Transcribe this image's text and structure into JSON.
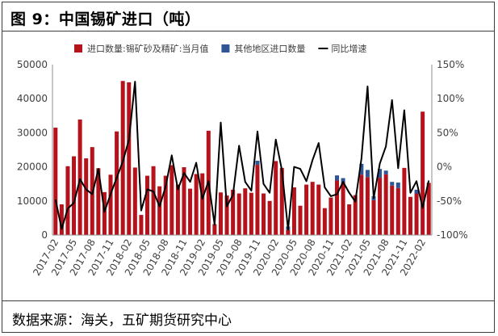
{
  "title": "图 9：中国锡矿进口（吨）",
  "source": "数据来源：海关，五矿期货研究中心",
  "chart_data": {
    "type": "bar",
    "series": [
      {
        "name": "进口数量:锡矿砂及精矿:当月值",
        "kind": "bar",
        "color": "#b5121b",
        "values": [
          31500,
          9000,
          20200,
          23100,
          33900,
          22500,
          25800,
          19600,
          12600,
          17700,
          30400,
          45200,
          44800,
          19800,
          5900,
          17400,
          20200,
          14300,
          17400,
          20500,
          14800,
          19900,
          13600,
          17900,
          18100,
          30600,
          3200,
          12500,
          11600,
          13300,
          12200,
          13700,
          12400,
          20600,
          12200,
          10000,
          21700,
          19700,
          1500,
          14000,
          8600,
          14800,
          15600,
          14800,
          7900,
          11000,
          16000,
          15500,
          9000,
          11700,
          17700,
          17000,
          10200,
          16800,
          17800,
          14500,
          13800,
          19700,
          11200,
          12200,
          36200,
          15300
        ]
      },
      {
        "name": "其他地区进口数量",
        "kind": "bar_stack",
        "color": "#2f5597",
        "values": [
          0,
          0,
          0,
          0,
          0,
          0,
          0,
          0,
          0,
          0,
          0,
          0,
          0,
          0,
          0,
          0,
          0,
          0,
          0,
          0,
          0,
          0,
          0,
          0,
          0,
          0,
          0,
          0,
          0,
          0,
          0,
          0,
          0,
          1200,
          0,
          0,
          0,
          0,
          1000,
          0,
          0,
          0,
          0,
          0,
          0,
          0,
          1500,
          1200,
          0,
          0,
          3200,
          2100,
          1200,
          2600,
          1100,
          1100,
          1600,
          0,
          0,
          1100,
          0,
          0
        ]
      },
      {
        "name": "同比增速",
        "kind": "line",
        "axis": "right",
        "color": "#000000",
        "values": [
          -48,
          -91,
          -61,
          -53,
          -18,
          -33,
          -40,
          -3,
          -66,
          -40,
          -16,
          8,
          40,
          125,
          -64,
          -33,
          -36,
          -58,
          -29,
          17,
          -33,
          -9,
          -22,
          6,
          -47,
          -21,
          -85,
          65,
          -58,
          -41,
          31,
          -22,
          -35,
          52,
          -25,
          -38,
          40,
          -5,
          -92,
          0,
          -3,
          -21,
          10,
          35,
          -30,
          -43,
          -40,
          -22,
          -38,
          -51,
          12,
          118,
          -46,
          5,
          30,
          98,
          -2,
          83,
          -38,
          -21,
          -60,
          -20
        ]
      }
    ],
    "x_ticks": [
      "2017-02",
      "2017-05",
      "2017-08",
      "2017-11",
      "2018-02",
      "2018-05",
      "2018-08",
      "2018-11",
      "2019-02",
      "2019-05",
      "2019-08",
      "2019-11",
      "2020-02",
      "2020-05",
      "2020-08",
      "2020-11",
      "2021-02",
      "2021-05",
      "2021-08",
      "2021-11",
      "2022-02"
    ],
    "y_left": {
      "min": 0,
      "max": 50000,
      "ticks": [
        "0",
        "10000",
        "20000",
        "30000",
        "40000",
        "50000"
      ]
    },
    "y_right": {
      "min": -100,
      "max": 150,
      "ticks": [
        "-100%",
        "-50%",
        "0%",
        "50%",
        "100%",
        "150%"
      ]
    },
    "legend_position": "top",
    "grid": false
  }
}
